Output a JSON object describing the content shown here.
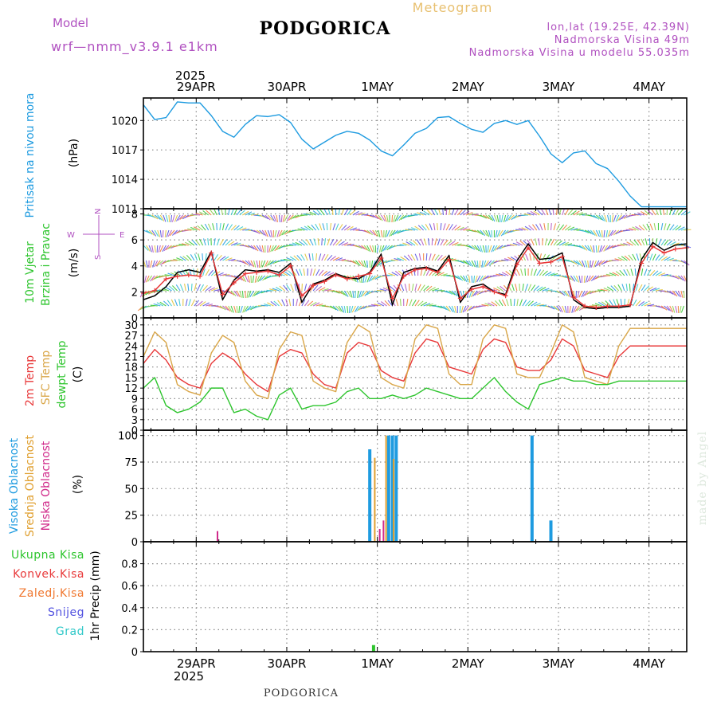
{
  "header": {
    "model_label": "Model",
    "model_name": "wrf—nmm_v3.9.1  e1km",
    "station": "PODGORICA",
    "meteogram": "Meteogram",
    "lonlat": "lon,lat (19.25E, 42.39N)",
    "elevation": "Nadmorska Visina 49m",
    "model_elevation": "Nadmorska Visina u modelu 55.035m"
  },
  "footer": {
    "station": "PODGORICA",
    "credit": "made by Angel"
  },
  "colors": {
    "pressure": "#1e9be0",
    "wind_speed": "#000000",
    "wind_dir": "#e8393a",
    "temp_2m": "#e8393a",
    "temp_sfc": "#d9a648",
    "dewpoint": "#2ec52e",
    "cloud_high": "#1e9be0",
    "cloud_mid": "#e0a030",
    "cloud_low": "#d02a8a",
    "precip_total": "#2ec52e",
    "precip_conv": "#e8393a",
    "precip_frozen": "#f07830",
    "snow": "#5050e0",
    "graupel": "#30c8c8",
    "model_text": "#b050c0"
  },
  "time_axis": {
    "top_year": "2025",
    "bottom_year": "2025",
    "days": [
      "29APR",
      "30APR",
      "1MAY",
      "2MAY",
      "3MAY",
      "4MAY"
    ]
  },
  "chart_data": [
    {
      "type": "line",
      "name": "pressure",
      "ylabel": "Pritisak na nivou mora",
      "unit": "(hPa)",
      "yticks": [
        "1020",
        "1017",
        "1014",
        "1011"
      ],
      "ylim": [
        1011,
        1022.3
      ],
      "x_hours": [
        0,
        3,
        6,
        9,
        12,
        15,
        18,
        21,
        24,
        27,
        30,
        33,
        36,
        39,
        42,
        45,
        48,
        51,
        54,
        57,
        60,
        63,
        66,
        69,
        72,
        75,
        78,
        81,
        84,
        87,
        90,
        93,
        96,
        99,
        102,
        105,
        108,
        111,
        114,
        117,
        120,
        123,
        126,
        129,
        132,
        135,
        138,
        141,
        144
      ],
      "series": [
        {
          "values": [
            1021.6,
            1020.1,
            1020.3,
            1021.9,
            1021.8,
            1021.8,
            1020.5,
            1018.9,
            1018.3,
            1019.6,
            1020.5,
            1020.4,
            1020.6,
            1019.8,
            1018.1,
            1017.1,
            1017.8,
            1018.5,
            1018.9,
            1018.7,
            1018.0,
            1016.9,
            1016.4,
            1017.5,
            1018.7,
            1019.2,
            1020.3,
            1020.4,
            1019.7,
            1019.1,
            1018.8,
            1019.7,
            1020.0,
            1019.6,
            1020.0,
            1018.4,
            1016.6,
            1015.7,
            1016.7,
            1016.9,
            1015.6,
            1015.1,
            1013.8,
            1012.3,
            1011.2,
            1011.2,
            1011.2,
            1011.2,
            1011.2
          ]
        }
      ]
    },
    {
      "type": "line",
      "name": "wind",
      "ylabel": "10m Vjetar Brzina i Pravac",
      "unit": "(m/s)",
      "yticks": [
        "8",
        "6",
        "4",
        "2",
        "0"
      ],
      "ylim": [
        0,
        8.4
      ],
      "compass": [
        "W",
        "N",
        "E",
        "S"
      ],
      "x_hours": [
        0,
        3,
        6,
        9,
        12,
        15,
        18,
        21,
        24,
        27,
        30,
        33,
        36,
        39,
        42,
        45,
        48,
        51,
        54,
        57,
        60,
        63,
        66,
        69,
        72,
        75,
        78,
        81,
        84,
        87,
        90,
        93,
        96,
        99,
        102,
        105,
        108,
        111,
        114,
        117,
        120,
        123,
        126,
        129,
        132,
        135,
        138,
        141,
        144
      ],
      "series": [
        {
          "name": "speed",
          "values": [
            1.4,
            1.7,
            2.4,
            3.5,
            3.7,
            3.5,
            5.1,
            1.4,
            2.9,
            3.7,
            3.6,
            3.7,
            3.5,
            4.2,
            1.2,
            2.6,
            2.9,
            3.4,
            3.1,
            3.0,
            3.5,
            4.9,
            1.0,
            3.5,
            3.8,
            3.9,
            3.6,
            4.8,
            1.2,
            2.4,
            2.6,
            2.0,
            1.8,
            4.4,
            5.7,
            4.5,
            4.6,
            5.0,
            1.4,
            0.8,
            0.7,
            0.8,
            0.8,
            0.9,
            4.5,
            5.8,
            5.2,
            5.6,
            5.7
          ]
        },
        {
          "name": "direction",
          "values": [
            1.9,
            2.1,
            3.0,
            3.2,
            3.3,
            3.2,
            5.0,
            1.8,
            2.7,
            3.4,
            3.5,
            3.6,
            3.3,
            4.0,
            1.7,
            2.5,
            2.8,
            3.3,
            3.0,
            3.2,
            3.4,
            4.6,
            1.5,
            3.2,
            3.7,
            3.8,
            3.5,
            4.5,
            1.5,
            2.2,
            2.4,
            2.0,
            1.7,
            4.1,
            5.4,
            4.2,
            4.3,
            4.7,
            1.6,
            0.9,
            0.8,
            0.9,
            0.9,
            1.0,
            4.2,
            5.5,
            5.0,
            5.3,
            5.4
          ]
        }
      ]
    },
    {
      "type": "line",
      "name": "temperature",
      "ylabel": "2m Temp SFC Temp dewpt Temp",
      "unit": "(C)",
      "yticks": [
        "30",
        "27",
        "24",
        "21",
        "18",
        "15",
        "12",
        "9",
        "6",
        "3",
        "0"
      ],
      "ylim": [
        0,
        32
      ],
      "x_hours": [
        0,
        3,
        6,
        9,
        12,
        15,
        18,
        21,
        24,
        27,
        30,
        33,
        36,
        39,
        42,
        45,
        48,
        51,
        54,
        57,
        60,
        63,
        66,
        69,
        72,
        75,
        78,
        81,
        84,
        87,
        90,
        93,
        96,
        99,
        102,
        105,
        108,
        111,
        114,
        117,
        120,
        123,
        126,
        129,
        132,
        135,
        138,
        141,
        144
      ],
      "series": [
        {
          "name": "2m Temp",
          "values": [
            19,
            23,
            20,
            15,
            13,
            12,
            19,
            22,
            20,
            16,
            13,
            11,
            21,
            23,
            22,
            16,
            13,
            12,
            22,
            25,
            24,
            17,
            15,
            14,
            22,
            26,
            25,
            18,
            17,
            16,
            23,
            26,
            25,
            18,
            17,
            17,
            20,
            26,
            24,
            17,
            16,
            15,
            21,
            24,
            24,
            24,
            24,
            24,
            24
          ]
        },
        {
          "name": "SFC Temp",
          "values": [
            21,
            28,
            25,
            13,
            11,
            10,
            22,
            27,
            25,
            14,
            10,
            9,
            23,
            28,
            27,
            14,
            12,
            11,
            25,
            30,
            28,
            15,
            13,
            12,
            26,
            30,
            29,
            16,
            13,
            13,
            26,
            30,
            29,
            16,
            15,
            15,
            22,
            30,
            28,
            15,
            14,
            13,
            24,
            29,
            29,
            29,
            29,
            29,
            29
          ]
        },
        {
          "name": "dewpt Temp",
          "values": [
            12,
            15,
            7,
            5,
            6,
            8,
            12,
            12,
            5,
            6,
            4,
            3,
            10,
            12,
            6,
            7,
            7,
            8,
            11,
            12,
            9,
            9,
            10,
            9,
            10,
            12,
            11,
            10,
            9,
            9,
            12,
            15,
            11,
            8,
            6,
            13,
            14,
            15,
            14,
            14,
            13,
            13,
            14,
            14,
            14,
            14,
            14,
            14,
            14
          ]
        }
      ]
    },
    {
      "type": "bar",
      "name": "cloud",
      "ylabel": "Visoka Oblacnost Srednja Oblacnost Niska Oblacnost",
      "unit": "(%)",
      "yticks": [
        "100",
        "75",
        "50",
        "25",
        "0"
      ],
      "ylim": [
        0,
        105
      ],
      "series": [
        {
          "name": "Visoka Oblacnost",
          "bars": [
            [
              60,
              87
            ],
            [
              65,
              100
            ],
            [
              66,
              100
            ],
            [
              67,
              100
            ],
            [
              103,
              100
            ],
            [
              108,
              20
            ]
          ]
        },
        {
          "name": "Srednja Oblacnost",
          "bars": [
            [
              61,
              79
            ],
            [
              64,
              100
            ],
            [
              66,
              78
            ]
          ]
        },
        {
          "name": "Niska Oblacnost",
          "bars": [
            [
              19,
              10
            ],
            [
              62,
              12
            ],
            [
              63,
              20
            ]
          ]
        }
      ]
    },
    {
      "type": "bar",
      "name": "precip",
      "ylabel": "1hr Precip (mm)",
      "unit": "",
      "yticks": [
        "0.8",
        "0.6",
        "0.4",
        "0.2",
        "0"
      ],
      "ylim": [
        0,
        1.0
      ],
      "series": [
        {
          "name": "Ukupna Kisa",
          "bars": [
            [
              61,
              0.06
            ]
          ]
        },
        {
          "name": "Konvek.Kisa",
          "bars": []
        },
        {
          "name": "Zaledj.Kisa",
          "bars": []
        },
        {
          "name": "Snijeg",
          "bars": []
        },
        {
          "name": "Grad",
          "bars": []
        }
      ],
      "legend": [
        "Ukupna Kisa",
        "Konvek.Kisa",
        "Zaledj.Kisa",
        "Snijeg",
        "Grad"
      ]
    }
  ]
}
